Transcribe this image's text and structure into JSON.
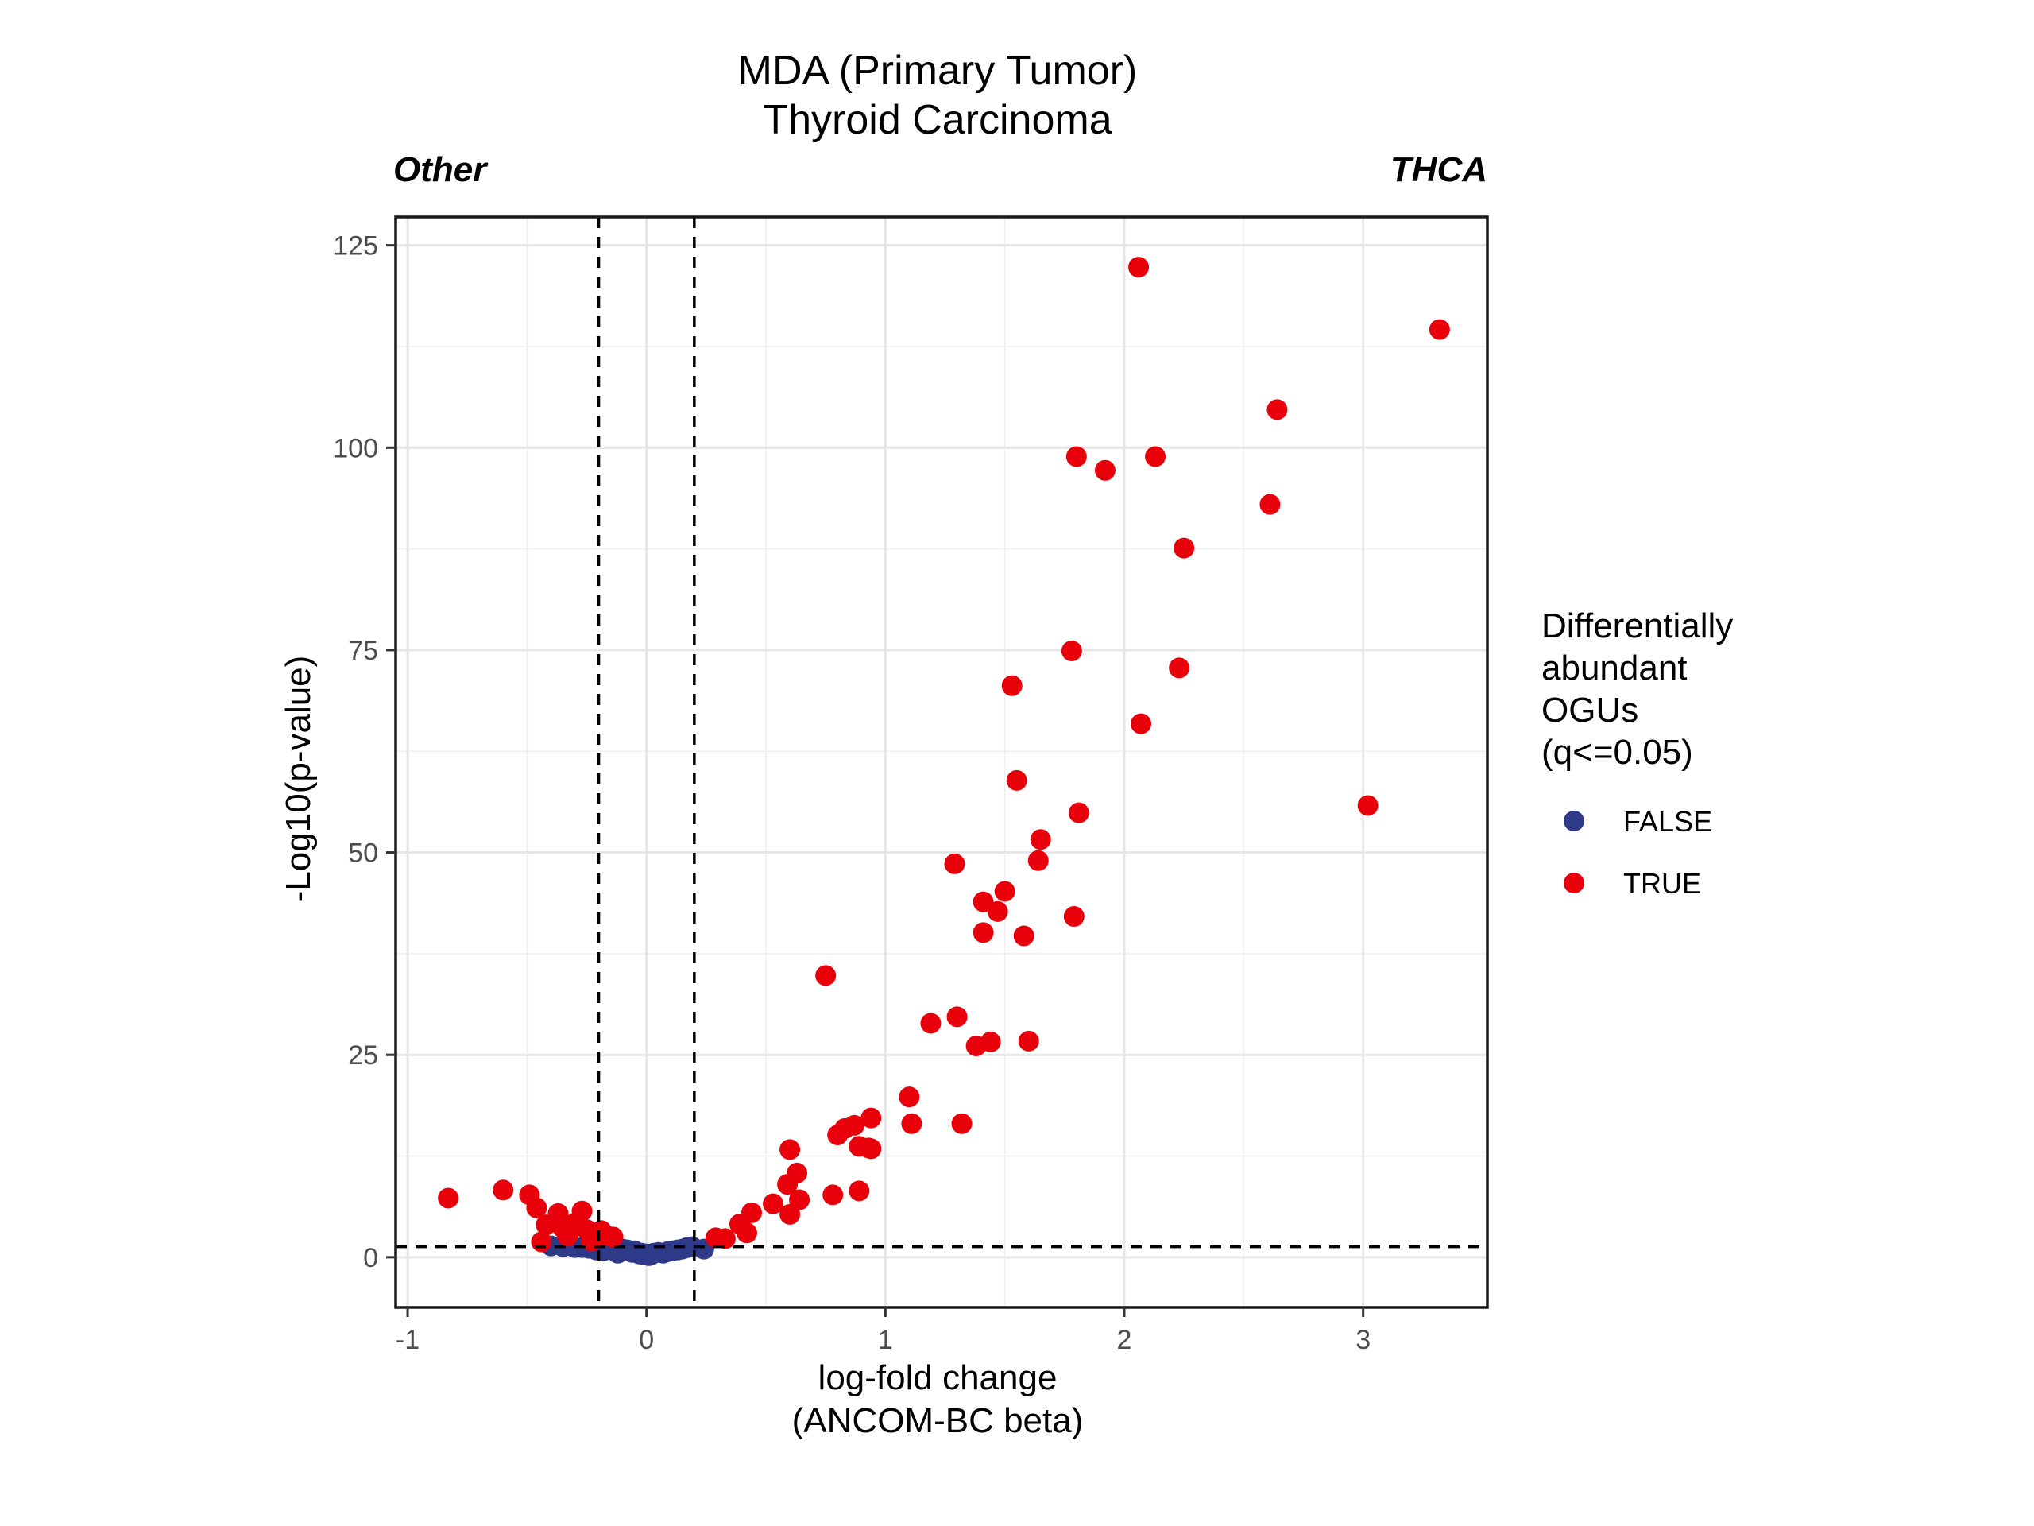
{
  "chart_data": {
    "type": "scatter",
    "title": "MDA (Primary Tumor)",
    "subtitle": "Thyroid Carcinoma",
    "left_label": "Other",
    "right_label": "THCA",
    "xlabel": [
      "log-fold change",
      "(ANCOM-BC beta)"
    ],
    "ylabel": "-Log10(p-value)",
    "xlim": [
      -1.05,
      3.52
    ],
    "ylim": [
      -6.2,
      128.5
    ],
    "x_ticks": [
      -1,
      0,
      1,
      2,
      3
    ],
    "x_tick_labels": [
      "-1",
      "0",
      "1",
      "2",
      "3"
    ],
    "y_ticks": [
      0,
      25,
      50,
      75,
      100,
      125
    ],
    "y_tick_labels": [
      "0",
      "25",
      "50",
      "75",
      "100",
      "125"
    ],
    "grid": true,
    "thresholds": {
      "vertical": [
        -0.2,
        0.2
      ],
      "horizontal": 1.3
    },
    "legend": {
      "title": [
        "Differentially",
        "abundant",
        "OGUs",
        "(q<=0.05)"
      ],
      "placement": "right",
      "entries": [
        {
          "label": "FALSE",
          "color": "#2e3a87"
        },
        {
          "label": "TRUE",
          "color": "#e8000b"
        }
      ]
    },
    "series": [
      {
        "name": "FALSE",
        "color": "#2e3a87",
        "points": [
          [
            -0.4,
            1.4
          ],
          [
            -0.35,
            1.3
          ],
          [
            -0.3,
            1.2
          ],
          [
            -0.27,
            1.2
          ],
          [
            -0.24,
            1.1
          ],
          [
            -0.21,
            0.9
          ],
          [
            -0.18,
            0.8
          ],
          [
            -0.15,
            1.0
          ],
          [
            -0.13,
            0.7
          ],
          [
            -0.12,
            0.5
          ],
          [
            -0.1,
            1.0
          ],
          [
            -0.08,
            0.9
          ],
          [
            -0.06,
            0.6
          ],
          [
            -0.05,
            0.8
          ],
          [
            -0.03,
            0.4
          ],
          [
            -0.02,
            0.5
          ],
          [
            -0.01,
            0.3
          ],
          [
            0.0,
            0.4
          ],
          [
            0.01,
            0.2
          ],
          [
            0.02,
            0.3
          ],
          [
            0.03,
            0.5
          ],
          [
            0.05,
            0.6
          ],
          [
            0.07,
            0.5
          ],
          [
            0.09,
            0.7
          ],
          [
            0.11,
            0.8
          ],
          [
            0.13,
            0.9
          ],
          [
            0.15,
            1.0
          ],
          [
            0.17,
            1.2
          ],
          [
            0.19,
            1.3
          ],
          [
            0.24,
            1.0
          ]
        ]
      },
      {
        "name": "TRUE",
        "color": "#e8000b",
        "points": [
          [
            -0.83,
            7.3
          ],
          [
            -0.6,
            8.3
          ],
          [
            -0.49,
            7.7
          ],
          [
            -0.46,
            6.1
          ],
          [
            -0.44,
            1.9
          ],
          [
            -0.42,
            4.0
          ],
          [
            -0.37,
            5.4
          ],
          [
            -0.35,
            3.6
          ],
          [
            -0.33,
            2.6
          ],
          [
            -0.3,
            4.2
          ],
          [
            -0.27,
            5.7
          ],
          [
            -0.25,
            3.4
          ],
          [
            -0.23,
            2.0
          ],
          [
            -0.19,
            3.3
          ],
          [
            -0.17,
            2.7
          ],
          [
            -0.14,
            2.5
          ],
          [
            0.29,
            2.4
          ],
          [
            0.33,
            2.3
          ],
          [
            0.39,
            4.1
          ],
          [
            0.42,
            3.0
          ],
          [
            0.44,
            5.5
          ],
          [
            0.53,
            6.6
          ],
          [
            0.59,
            9.0
          ],
          [
            0.6,
            5.3
          ],
          [
            0.6,
            13.3
          ],
          [
            0.63,
            10.4
          ],
          [
            0.64,
            7.1
          ],
          [
            0.78,
            7.7
          ],
          [
            0.8,
            15.1
          ],
          [
            0.83,
            15.9
          ],
          [
            0.87,
            16.3
          ],
          [
            0.89,
            13.7
          ],
          [
            0.89,
            8.2
          ],
          [
            0.93,
            13.5
          ],
          [
            0.94,
            17.2
          ],
          [
            0.94,
            13.4
          ],
          [
            0.75,
            34.8
          ],
          [
            1.1,
            19.8
          ],
          [
            1.11,
            16.5
          ],
          [
            1.19,
            28.9
          ],
          [
            1.29,
            48.6
          ],
          [
            1.3,
            29.7
          ],
          [
            1.32,
            16.5
          ],
          [
            1.38,
            26.1
          ],
          [
            1.41,
            43.9
          ],
          [
            1.41,
            40.1
          ],
          [
            1.44,
            26.6
          ],
          [
            1.47,
            42.7
          ],
          [
            1.5,
            45.2
          ],
          [
            1.53,
            70.6
          ],
          [
            1.55,
            58.9
          ],
          [
            1.58,
            39.7
          ],
          [
            1.6,
            26.7
          ],
          [
            1.64,
            49.0
          ],
          [
            1.65,
            51.6
          ],
          [
            1.78,
            74.9
          ],
          [
            1.79,
            42.1
          ],
          [
            1.8,
            98.9
          ],
          [
            1.81,
            54.9
          ],
          [
            1.92,
            97.2
          ],
          [
            2.06,
            122.3
          ],
          [
            2.07,
            65.9
          ],
          [
            2.13,
            98.9
          ],
          [
            2.23,
            72.8
          ],
          [
            2.25,
            87.6
          ],
          [
            2.61,
            93.0
          ],
          [
            2.64,
            104.7
          ],
          [
            3.02,
            55.8
          ],
          [
            3.32,
            114.6
          ]
        ]
      }
    ]
  }
}
